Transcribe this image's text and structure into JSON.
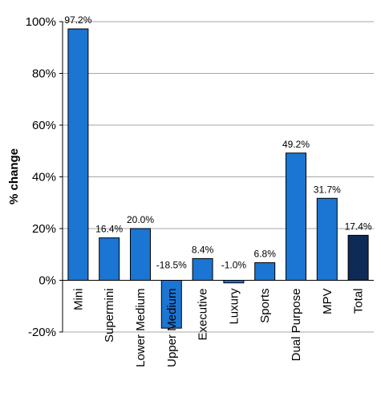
{
  "chart_data": {
    "type": "bar",
    "title": "",
    "xlabel": "",
    "ylabel": "% change",
    "categories": [
      "Mini",
      "Supermini",
      "Lower Medium",
      "Upper Medium",
      "Executive",
      "Luxury",
      "Sports",
      "Dual Purpose",
      "MPV",
      "Total"
    ],
    "values": [
      97.2,
      16.4,
      20.0,
      -18.5,
      8.4,
      -1.0,
      6.8,
      49.2,
      31.7,
      17.4
    ],
    "data_labels": [
      "97.2%",
      "16.4%",
      "20.0%",
      "-18.5%",
      "8.4%",
      "-1.0%",
      "6.8%",
      "49.2%",
      "31.7%",
      "17.4%"
    ],
    "ylim": [
      -20,
      100
    ],
    "yticks": [
      -20,
      0,
      20,
      40,
      60,
      80,
      100
    ],
    "ytick_labels": [
      "-20%",
      "0%",
      "20%",
      "40%",
      "60%",
      "80%",
      "100%"
    ],
    "grid": true,
    "legend": "none",
    "colors": {
      "bar": "#1b75d2",
      "highlight_bar": "#0e2a57",
      "bar_stroke": "#000000",
      "grid": "#a6a6a6"
    },
    "highlight_category": "Total"
  }
}
